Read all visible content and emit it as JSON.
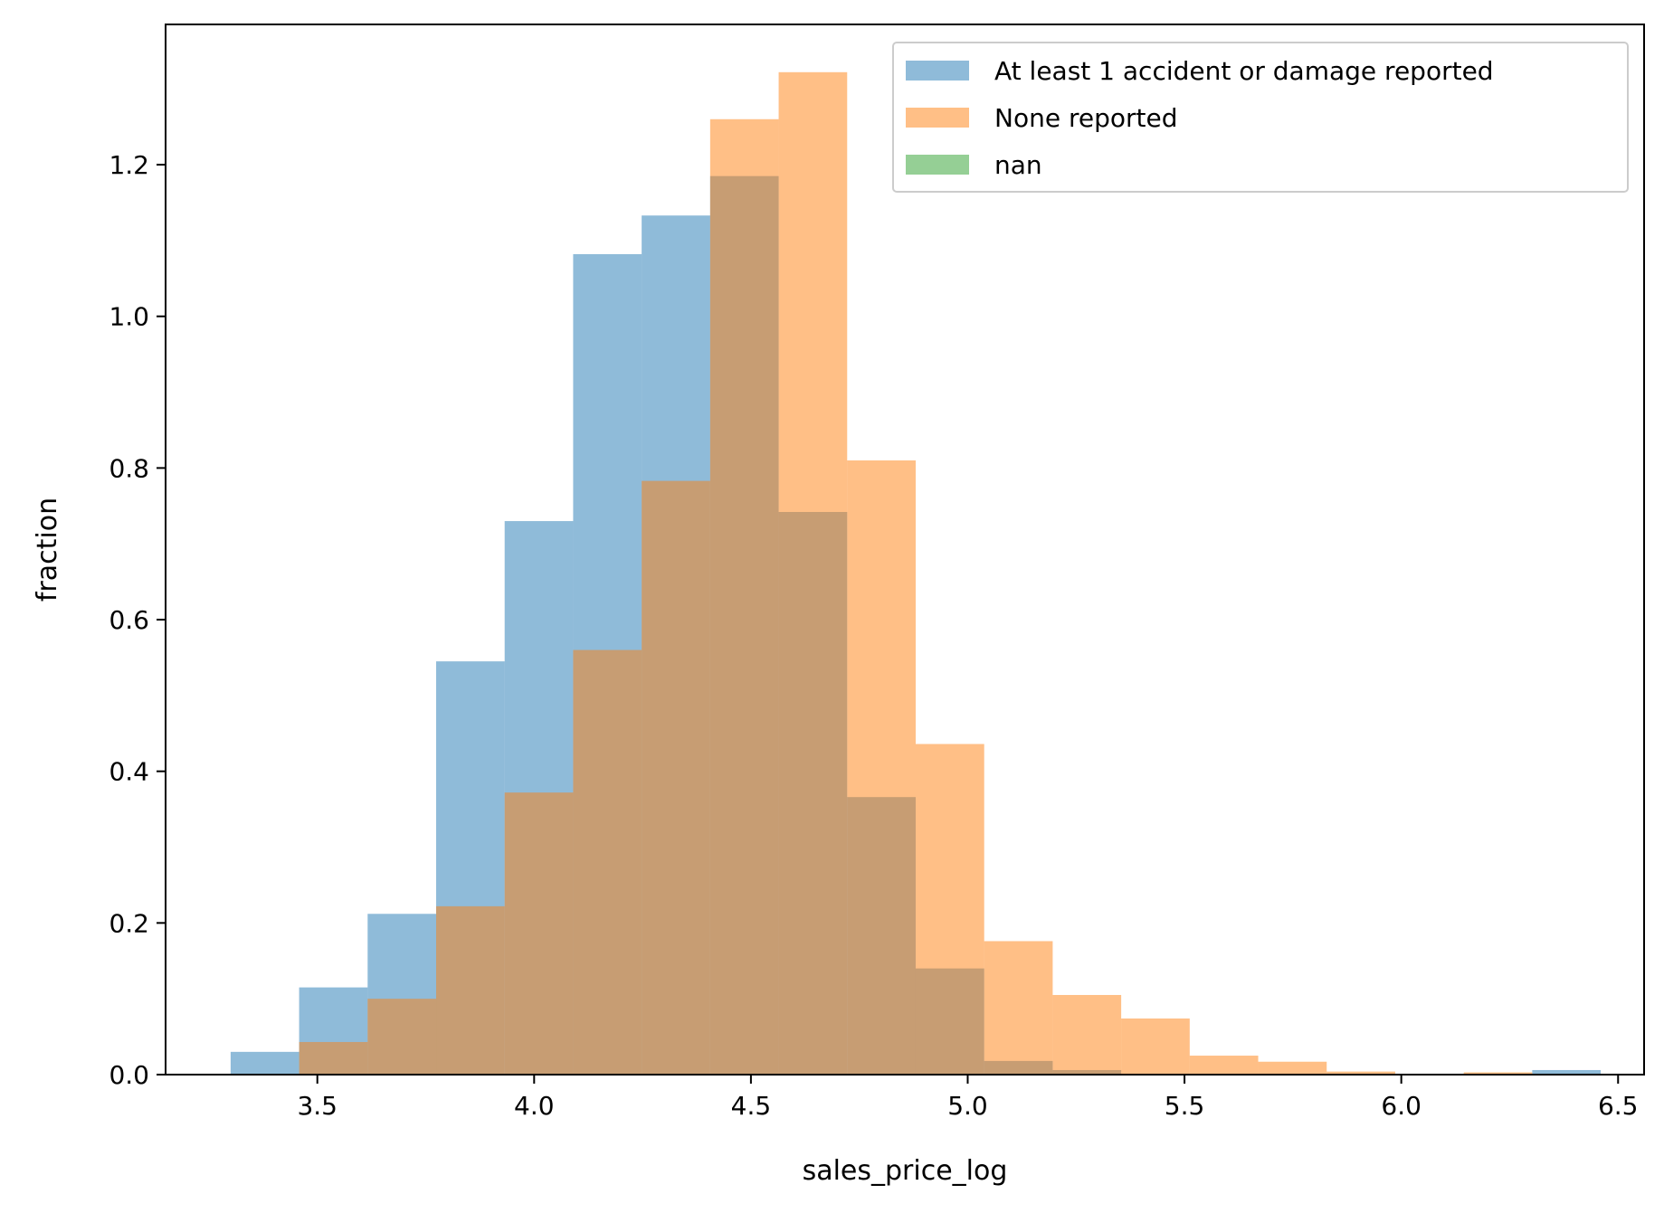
{
  "chart_data": {
    "type": "bar",
    "title": "",
    "xlabel": "sales_price_log",
    "ylabel": "fraction",
    "xlim": [
      3.15,
      6.56
    ],
    "ylim": [
      0,
      1.385
    ],
    "xticks": [
      "3.5",
      "4.0",
      "4.5",
      "5.0",
      "5.5",
      "6.0",
      "6.5"
    ],
    "yticks": [
      "0.0",
      "0.2",
      "0.4",
      "0.6",
      "0.8",
      "1.0",
      "1.2"
    ],
    "grid": false,
    "legend_position": "top-right",
    "bin_edges": [
      3.3,
      3.458,
      3.616,
      3.774,
      3.932,
      4.09,
      4.248,
      4.406,
      4.564,
      4.722,
      4.88,
      5.038,
      5.196,
      5.354,
      5.512,
      5.67,
      5.828,
      5.986,
      6.144,
      6.302,
      6.46
    ],
    "series": [
      {
        "name": "At least 1 accident or damage reported",
        "color": "#1f77b4",
        "alpha": 0.5,
        "values": [
          0.03,
          0.115,
          0.212,
          0.545,
          0.73,
          1.082,
          1.133,
          1.185,
          0.742,
          0.366,
          0.14,
          0.018,
          0.006,
          0,
          0,
          0,
          0,
          0,
          0,
          0.006
        ]
      },
      {
        "name": "None reported",
        "color": "#ff7f0e",
        "alpha": 0.5,
        "values": [
          0,
          0.043,
          0.1,
          0.222,
          0.372,
          0.56,
          0.783,
          1.26,
          1.322,
          0.81,
          0.436,
          0.176,
          0.105,
          0.074,
          0.025,
          0.017,
          0.004,
          0.001,
          0.003,
          0
        ]
      },
      {
        "name": "nan",
        "color": "#2ca02c",
        "alpha": 0.5,
        "values": [
          0,
          0,
          0,
          0,
          0,
          0,
          0,
          0,
          0,
          0,
          0,
          0,
          0,
          0,
          0,
          0,
          0,
          0,
          0,
          0
        ]
      }
    ]
  }
}
